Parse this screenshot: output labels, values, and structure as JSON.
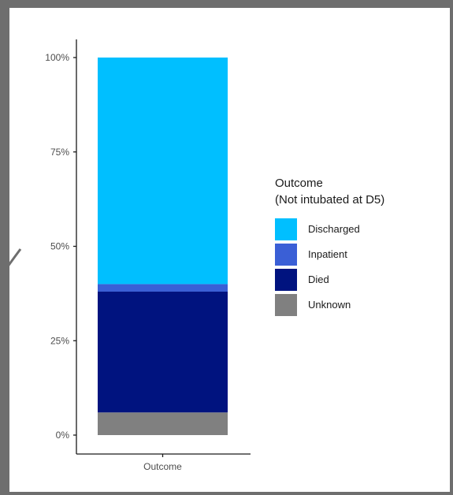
{
  "chart_data": {
    "type": "bar",
    "stacked": true,
    "categories": [
      "Outcome"
    ],
    "series": [
      {
        "name": "Unknown",
        "values": [
          6
        ],
        "color": "#808080"
      },
      {
        "name": "Died",
        "values": [
          32
        ],
        "color": "#00137f"
      },
      {
        "name": "Inpatient",
        "values": [
          2
        ],
        "color": "#3a5fd6"
      },
      {
        "name": "Discharged",
        "values": [
          60
        ],
        "color": "#00bfff"
      }
    ],
    "legend_order": [
      "Discharged",
      "Inpatient",
      "Died",
      "Unknown"
    ],
    "legend_title": [
      "Outcome",
      "(Not intubated at D5)"
    ],
    "legend_placement": "right",
    "ylim": [
      0,
      100
    ],
    "yticks": [
      0,
      25,
      50,
      75,
      100
    ],
    "ytick_labels": [
      "0%",
      "25%",
      "50%",
      "75%",
      "100%"
    ],
    "grid": false
  }
}
